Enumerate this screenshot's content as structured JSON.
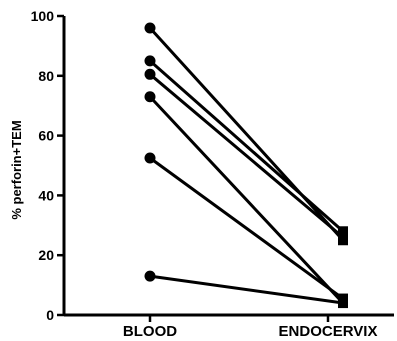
{
  "chart_data": {
    "type": "line",
    "categories": [
      "BLOOD",
      "ENDOCERVIX"
    ],
    "ylabel": "% perforin+TEM",
    "xlabel": "",
    "ylim": [
      0,
      100
    ],
    "yticks": [
      0,
      20,
      40,
      60,
      80,
      100
    ],
    "markers": {
      "BLOOD": "circle",
      "ENDOCERVIX": "square"
    },
    "series": [
      {
        "values": [
          96,
          25
        ]
      },
      {
        "values": [
          85,
          28
        ]
      },
      {
        "values": [
          80.5,
          26
        ]
      },
      {
        "values": [
          73,
          4
        ]
      },
      {
        "values": [
          52.5,
          5.5
        ]
      },
      {
        "values": [
          13,
          4
        ]
      }
    ],
    "grid": false,
    "legend": "none"
  }
}
